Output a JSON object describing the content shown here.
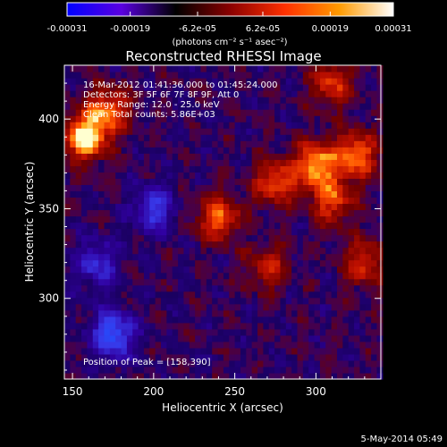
{
  "colorbar": {
    "tick_labels": [
      "-0.00031",
      "-0.00019",
      "-6.2e-05",
      "6.2e-05",
      "0.00019",
      "0.00031"
    ],
    "unit_label": "(photons cm⁻² s⁻¹ asec⁻²)",
    "range": [
      -0.00031,
      0.00031
    ],
    "colors": [
      "#0000ff",
      "#5a00e0",
      "#000000",
      "#8a0000",
      "#ff3000",
      "#ff9a00",
      "#ffffff"
    ]
  },
  "chart_data": {
    "type": "heatmap",
    "title": "Reconstructed RHESSI Image",
    "xlabel": "Heliocentric X (arcsec)",
    "ylabel": "Heliocentric Y (arcsec)",
    "xlim": [
      145,
      340
    ],
    "ylim": [
      255,
      430
    ],
    "x_ticks": [
      150,
      200,
      250,
      300
    ],
    "y_ticks": [
      300,
      350,
      400
    ],
    "annotations": [
      "16-Mar-2012 01:41:36.000 to 01:45:24.000",
      "Detectors: 3F 5F 6F 7F 8F 9F, Att 0",
      "Energy Range: 12.0 - 25.0 keV",
      "Clean    Total counts: 5.86E+03"
    ],
    "peak_label": "Position of Peak = [158,390]",
    "peak": [
      158,
      390
    ],
    "bright_regions": [
      {
        "x": 158,
        "y": 390,
        "level": 1.0
      },
      {
        "x": 172,
        "y": 405,
        "level": 0.7
      },
      {
        "x": 240,
        "y": 345,
        "level": 0.7
      },
      {
        "x": 275,
        "y": 365,
        "level": 0.65
      },
      {
        "x": 300,
        "y": 375,
        "level": 0.85
      },
      {
        "x": 325,
        "y": 380,
        "level": 0.75
      },
      {
        "x": 310,
        "y": 355,
        "level": 0.6
      },
      {
        "x": 330,
        "y": 320,
        "level": 0.55
      },
      {
        "x": 270,
        "y": 318,
        "level": 0.45
      },
      {
        "x": 310,
        "y": 420,
        "level": 0.55
      }
    ],
    "dim_regions": [
      {
        "x": 175,
        "y": 280,
        "level": -0.8
      },
      {
        "x": 200,
        "y": 350,
        "level": -0.55
      },
      {
        "x": 165,
        "y": 320,
        "level": -0.5
      }
    ]
  },
  "footer": {
    "date": "5-May-2014 05:49"
  }
}
